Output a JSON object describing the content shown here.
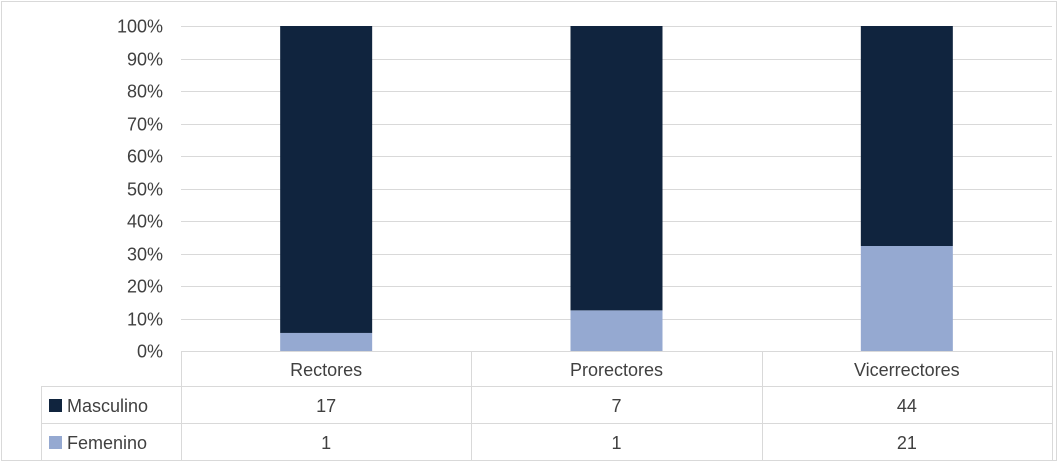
{
  "chart_data": {
    "type": "bar",
    "stacked": true,
    "normalized_percent": true,
    "categories": [
      "Rectores",
      "Prorectores",
      "Vicerrectores"
    ],
    "series": [
      {
        "name": "Masculino",
        "values": [
          17,
          7,
          44
        ],
        "color": "#10243e"
      },
      {
        "name": "Femenino",
        "values": [
          1,
          1,
          21
        ],
        "color": "#95a9d1"
      }
    ],
    "y_ticks": [
      "0%",
      "10%",
      "20%",
      "30%",
      "40%",
      "50%",
      "60%",
      "70%",
      "80%",
      "90%",
      "100%"
    ],
    "ylim": [
      0,
      100
    ],
    "grid": true,
    "legend_placement": "bottom (data table)",
    "data_table": true
  }
}
